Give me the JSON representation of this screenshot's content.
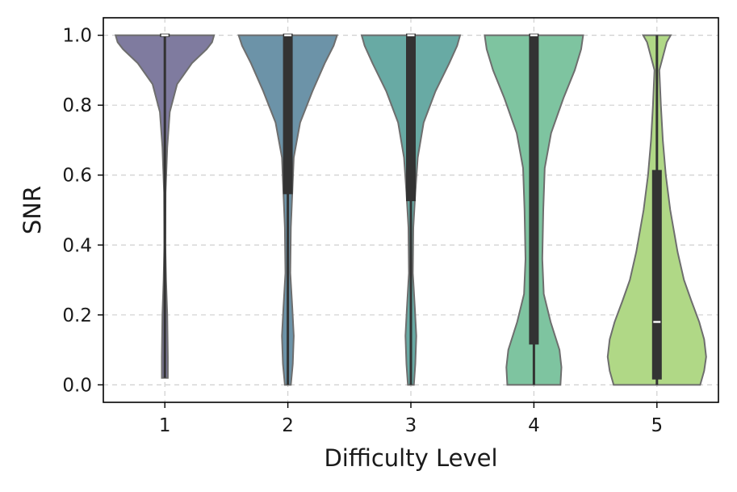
{
  "chart_data": {
    "type": "violin",
    "title": "",
    "xlabel": "Difficulty Level",
    "ylabel": "SNR",
    "ylim": [
      -0.05,
      1.05
    ],
    "yticks": [
      0.0,
      0.2,
      0.4,
      0.6,
      0.8,
      1.0
    ],
    "ytick_labels": [
      "0.0",
      "0.2",
      "0.4",
      "0.6",
      "0.8",
      "1.0"
    ],
    "grid": true,
    "categories": [
      "1",
      "2",
      "3",
      "4",
      "5"
    ],
    "series": [
      {
        "category": "1",
        "color": "#7f7b9f",
        "min": 0.02,
        "q1": 1.0,
        "median": 1.0,
        "q3": 1.0,
        "max": 1.0,
        "density": [
          [
            0.02,
            0.06
          ],
          [
            0.08,
            0.06
          ],
          [
            0.2,
            0.05
          ],
          [
            0.3,
            0.025
          ],
          [
            0.4,
            0.01
          ],
          [
            0.55,
            0.015
          ],
          [
            0.68,
            0.05
          ],
          [
            0.78,
            0.1
          ],
          [
            0.86,
            0.25
          ],
          [
            0.92,
            0.55
          ],
          [
            0.96,
            0.85
          ],
          [
            0.98,
            0.96
          ],
          [
            1.0,
            1.0
          ]
        ]
      },
      {
        "category": "2",
        "color": "#6c93a8",
        "min": 0.0,
        "q1": 0.55,
        "median": 1.0,
        "q3": 1.0,
        "max": 1.0,
        "density": [
          [
            0.0,
            0.06
          ],
          [
            0.06,
            0.1
          ],
          [
            0.14,
            0.12
          ],
          [
            0.22,
            0.09
          ],
          [
            0.32,
            0.05
          ],
          [
            0.45,
            0.06
          ],
          [
            0.55,
            0.09
          ],
          [
            0.65,
            0.12
          ],
          [
            0.75,
            0.25
          ],
          [
            0.84,
            0.5
          ],
          [
            0.92,
            0.75
          ],
          [
            0.97,
            0.93
          ],
          [
            1.0,
            1.0
          ]
        ]
      },
      {
        "category": "3",
        "color": "#68aaa4",
        "min": 0.0,
        "q1": 0.53,
        "median": 1.0,
        "q3": 1.0,
        "max": 1.0,
        "density": [
          [
            0.0,
            0.06
          ],
          [
            0.06,
            0.09
          ],
          [
            0.14,
            0.11
          ],
          [
            0.22,
            0.08
          ],
          [
            0.32,
            0.04
          ],
          [
            0.45,
            0.05
          ],
          [
            0.55,
            0.09
          ],
          [
            0.65,
            0.14
          ],
          [
            0.75,
            0.26
          ],
          [
            0.84,
            0.5
          ],
          [
            0.92,
            0.78
          ],
          [
            0.97,
            0.94
          ],
          [
            1.0,
            1.0
          ]
        ]
      },
      {
        "category": "4",
        "color": "#7ec4a0",
        "min": 0.0,
        "q1": 0.12,
        "median": 1.0,
        "q3": 1.0,
        "max": 1.0,
        "density": [
          [
            0.0,
            0.54
          ],
          [
            0.05,
            0.56
          ],
          [
            0.1,
            0.52
          ],
          [
            0.18,
            0.34
          ],
          [
            0.26,
            0.2
          ],
          [
            0.36,
            0.17
          ],
          [
            0.5,
            0.19
          ],
          [
            0.62,
            0.22
          ],
          [
            0.72,
            0.35
          ],
          [
            0.82,
            0.6
          ],
          [
            0.9,
            0.83
          ],
          [
            0.96,
            0.96
          ],
          [
            1.0,
            1.0
          ]
        ]
      },
      {
        "category": "5",
        "color": "#b0d886",
        "min": 0.0,
        "q1": 0.02,
        "median": 0.18,
        "q3": 0.61,
        "max": 1.0,
        "density": [
          [
            0.0,
            0.88
          ],
          [
            0.04,
            0.96
          ],
          [
            0.08,
            1.0
          ],
          [
            0.13,
            0.96
          ],
          [
            0.18,
            0.86
          ],
          [
            0.24,
            0.7
          ],
          [
            0.3,
            0.55
          ],
          [
            0.38,
            0.42
          ],
          [
            0.5,
            0.27
          ],
          [
            0.6,
            0.18
          ],
          [
            0.7,
            0.12
          ],
          [
            0.8,
            0.08
          ],
          [
            0.9,
            0.05
          ],
          [
            0.98,
            0.2
          ],
          [
            1.0,
            0.28
          ]
        ]
      }
    ]
  }
}
